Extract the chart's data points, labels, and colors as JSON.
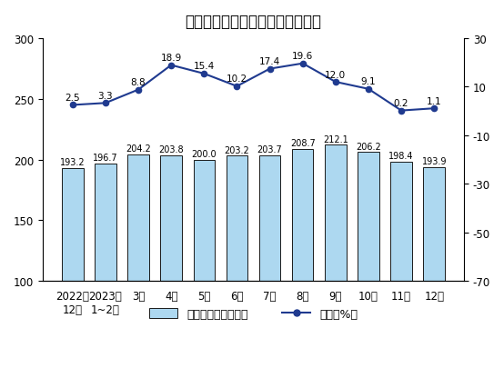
{
  "title": "原油加工量同比增速及日均加工量",
  "categories": [
    "2022年\n12月",
    "2023年\n1~2月",
    "3月",
    "4月",
    "5月",
    "6月",
    "7月",
    "8月",
    "9月",
    "10月",
    "11月",
    "12月"
  ],
  "bar_values": [
    193.2,
    196.7,
    204.2,
    203.8,
    200.0,
    203.2,
    203.7,
    208.7,
    212.1,
    206.2,
    198.4,
    193.9
  ],
  "line_values": [
    2.5,
    3.3,
    8.8,
    18.9,
    15.4,
    10.2,
    17.4,
    19.6,
    12.0,
    9.1,
    0.2,
    1.1
  ],
  "bar_color": "#ADD8F0",
  "bar_edgecolor": "#1a1a1a",
  "line_color": "#1F3A8F",
  "marker_facecolor": "#1F3A8F",
  "marker_edgecolor": "#1F3A8F",
  "left_ylim": [
    100,
    300
  ],
  "left_yticks": [
    100,
    150,
    200,
    250,
    300
  ],
  "right_ylim": [
    -70,
    30
  ],
  "right_yticks": [
    -70,
    -50,
    -30,
    -10,
    10,
    30
  ],
  "legend_bar_label": "日均加工量（万吨）",
  "legend_line_label": "增速（%）",
  "bar_label_fontsize": 7.0,
  "line_label_fontsize": 7.5,
  "title_fontsize": 12,
  "tick_fontsize": 8.5,
  "legend_fontsize": 9,
  "background_color": "#ffffff"
}
